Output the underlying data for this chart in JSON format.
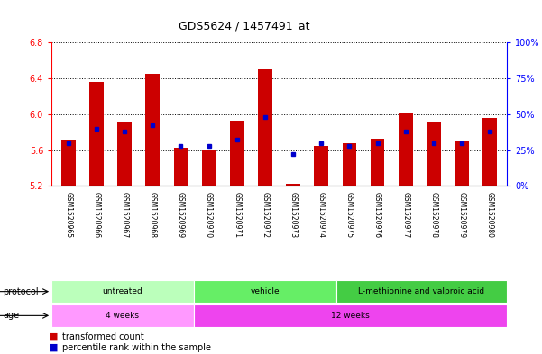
{
  "title": "GDS5624 / 1457491_at",
  "samples": [
    "GSM1520965",
    "GSM1520966",
    "GSM1520967",
    "GSM1520968",
    "GSM1520969",
    "GSM1520970",
    "GSM1520971",
    "GSM1520972",
    "GSM1520973",
    "GSM1520974",
    "GSM1520975",
    "GSM1520976",
    "GSM1520977",
    "GSM1520978",
    "GSM1520979",
    "GSM1520980"
  ],
  "bar_values": [
    5.72,
    6.36,
    5.92,
    6.45,
    5.63,
    5.6,
    5.93,
    6.5,
    5.22,
    5.65,
    5.68,
    5.73,
    6.02,
    5.92,
    5.7,
    5.96
  ],
  "dot_values": [
    30,
    40,
    38,
    42,
    28,
    28,
    32,
    48,
    22,
    30,
    28,
    30,
    38,
    30,
    30,
    38
  ],
  "ylim_left": [
    5.2,
    6.8
  ],
  "ylim_right": [
    0,
    100
  ],
  "yticks_left": [
    5.2,
    5.6,
    6.0,
    6.4,
    6.8
  ],
  "yticks_right": [
    0,
    25,
    50,
    75,
    100
  ],
  "ytick_labels_right": [
    "0%",
    "25%",
    "50%",
    "75%",
    "100%"
  ],
  "bar_color": "#cc0000",
  "dot_color": "#0000cc",
  "bar_bottom": 5.2,
  "protocol_groups": [
    {
      "label": "untreated",
      "start": 0,
      "end": 5,
      "color": "#bbffbb"
    },
    {
      "label": "vehicle",
      "start": 5,
      "end": 10,
      "color": "#66ee66"
    },
    {
      "label": "L-methionine and valproic acid",
      "start": 10,
      "end": 16,
      "color": "#44cc44"
    }
  ],
  "age_groups": [
    {
      "label": "4 weeks",
      "start": 0,
      "end": 5,
      "color": "#ff99ff"
    },
    {
      "label": "12 weeks",
      "start": 5,
      "end": 16,
      "color": "#ee44ee"
    }
  ],
  "protocol_label": "protocol",
  "age_label": "age",
  "legend_bar_label": "transformed count",
  "legend_dot_label": "percentile rank within the sample"
}
